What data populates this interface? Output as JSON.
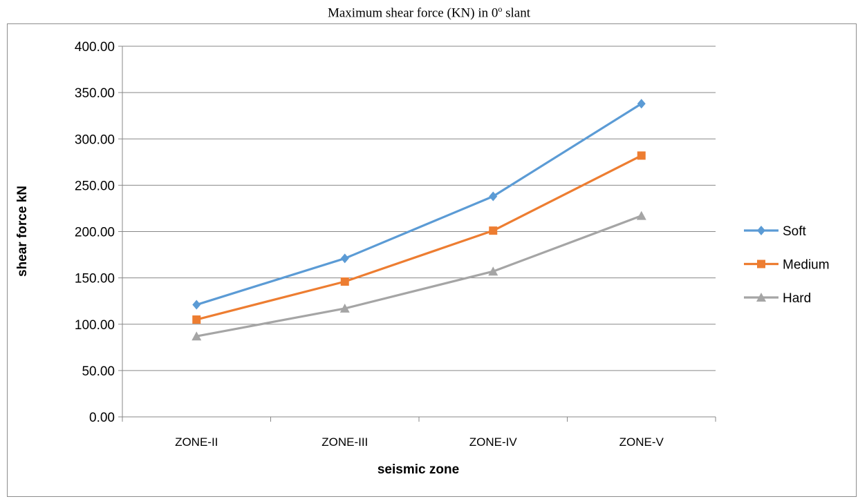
{
  "title_main": "Maximum shear force (KN) in 0",
  "title_sup": "o",
  "title_end": " slant",
  "chart_data": {
    "type": "line",
    "title": "Maximum shear force (KN) in 0o slant",
    "xlabel": "seismic zone",
    "ylabel": "shear force kN",
    "categories": [
      "ZONE-II",
      "ZONE-III",
      "ZONE-IV",
      "ZONE-V"
    ],
    "ylim": [
      0,
      400
    ],
    "yticks": [
      "0.00",
      "50.00",
      "100.00",
      "150.00",
      "200.00",
      "250.00",
      "300.00",
      "350.00",
      "400.00"
    ],
    "grid": true,
    "legend_position": "right",
    "series": [
      {
        "name": "Soft",
        "values": [
          121,
          171,
          238,
          338
        ],
        "color": "#5B9BD5",
        "marker": "diamond"
      },
      {
        "name": "Medium",
        "values": [
          105,
          146,
          201,
          282
        ],
        "color": "#ED7D31",
        "marker": "square"
      },
      {
        "name": "Hard",
        "values": [
          87,
          117,
          157,
          217
        ],
        "color": "#A5A5A5",
        "marker": "triangle"
      }
    ]
  }
}
